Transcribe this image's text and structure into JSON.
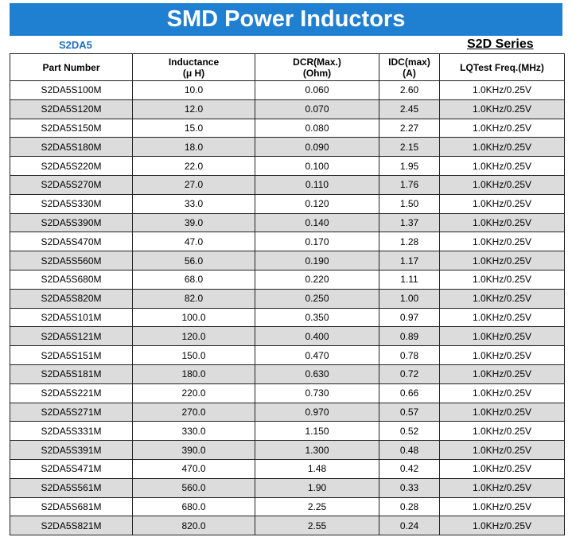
{
  "title": "SMD Power Inductors",
  "model": "S2DA5",
  "series": "S2D Series",
  "columns": [
    {
      "line1": "Part Number",
      "line2": ""
    },
    {
      "line1": "Inductance",
      "line2": "(μ H)"
    },
    {
      "line1": "DCR(Max.)",
      "line2": "(Ohm)"
    },
    {
      "line1": "IDC(max)",
      "line2": "(A)"
    },
    {
      "line1": "LQTest Freq.(MHz)",
      "line2": ""
    }
  ],
  "rows": [
    [
      "S2DA5S100M",
      "10.0",
      "0.060",
      "2.60",
      "1.0KHz/0.25V"
    ],
    [
      "S2DA5S120M",
      "12.0",
      "0.070",
      "2.45",
      "1.0KHz/0.25V"
    ],
    [
      "S2DA5S150M",
      "15.0",
      "0.080",
      "2.27",
      "1.0KHz/0.25V"
    ],
    [
      "S2DA5S180M",
      "18.0",
      "0.090",
      "2.15",
      "1.0KHz/0.25V"
    ],
    [
      "S2DA5S220M",
      "22.0",
      "0.100",
      "1.95",
      "1.0KHz/0.25V"
    ],
    [
      "S2DA5S270M",
      "27.0",
      "0.110",
      "1.76",
      "1.0KHz/0.25V"
    ],
    [
      "S2DA5S330M",
      "33.0",
      "0.120",
      "1.50",
      "1.0KHz/0.25V"
    ],
    [
      "S2DA5S390M",
      "39.0",
      "0.140",
      "1.37",
      "1.0KHz/0.25V"
    ],
    [
      "S2DA5S470M",
      "47.0",
      "0.170",
      "1.28",
      "1.0KHz/0.25V"
    ],
    [
      "S2DA5S560M",
      "56.0",
      "0.190",
      "1.17",
      "1.0KHz/0.25V"
    ],
    [
      "S2DA5S680M",
      "68.0",
      "0.220",
      "1.11",
      "1.0KHz/0.25V"
    ],
    [
      "S2DA5S820M",
      "82.0",
      "0.250",
      "1.00",
      "1.0KHz/0.25V"
    ],
    [
      "S2DA5S101M",
      "100.0",
      "0.350",
      "0.97",
      "1.0KHz/0.25V"
    ],
    [
      "S2DA5S121M",
      "120.0",
      "0.400",
      "0.89",
      "1.0KHz/0.25V"
    ],
    [
      "S2DA5S151M",
      "150.0",
      "0.470",
      "0.78",
      "1.0KHz/0.25V"
    ],
    [
      "S2DA5S181M",
      "180.0",
      "0.630",
      "0.72",
      "1.0KHz/0.25V"
    ],
    [
      "S2DA5S221M",
      "220.0",
      "0.730",
      "0.66",
      "1.0KHz/0.25V"
    ],
    [
      "S2DA5S271M",
      "270.0",
      "0.970",
      "0.57",
      "1.0KHz/0.25V"
    ],
    [
      "S2DA5S331M",
      "330.0",
      "1.150",
      "0.52",
      "1.0KHz/0.25V"
    ],
    [
      "S2DA5S391M",
      "390.0",
      "1.300",
      "0.48",
      "1.0KHz/0.25V"
    ],
    [
      "S2DA5S471M",
      "470.0",
      "1.48",
      "0.42",
      "1.0KHz/0.25V"
    ],
    [
      "S2DA5S561M",
      "560.0",
      "1.90",
      "0.33",
      "1.0KHz/0.25V"
    ],
    [
      "S2DA5S681M",
      "680.0",
      "2.25",
      "0.28",
      "1.0KHz/0.25V"
    ],
    [
      "S2DA5S821M",
      "820.0",
      "2.55",
      "0.24",
      "1.0KHz/0.25V"
    ]
  ]
}
